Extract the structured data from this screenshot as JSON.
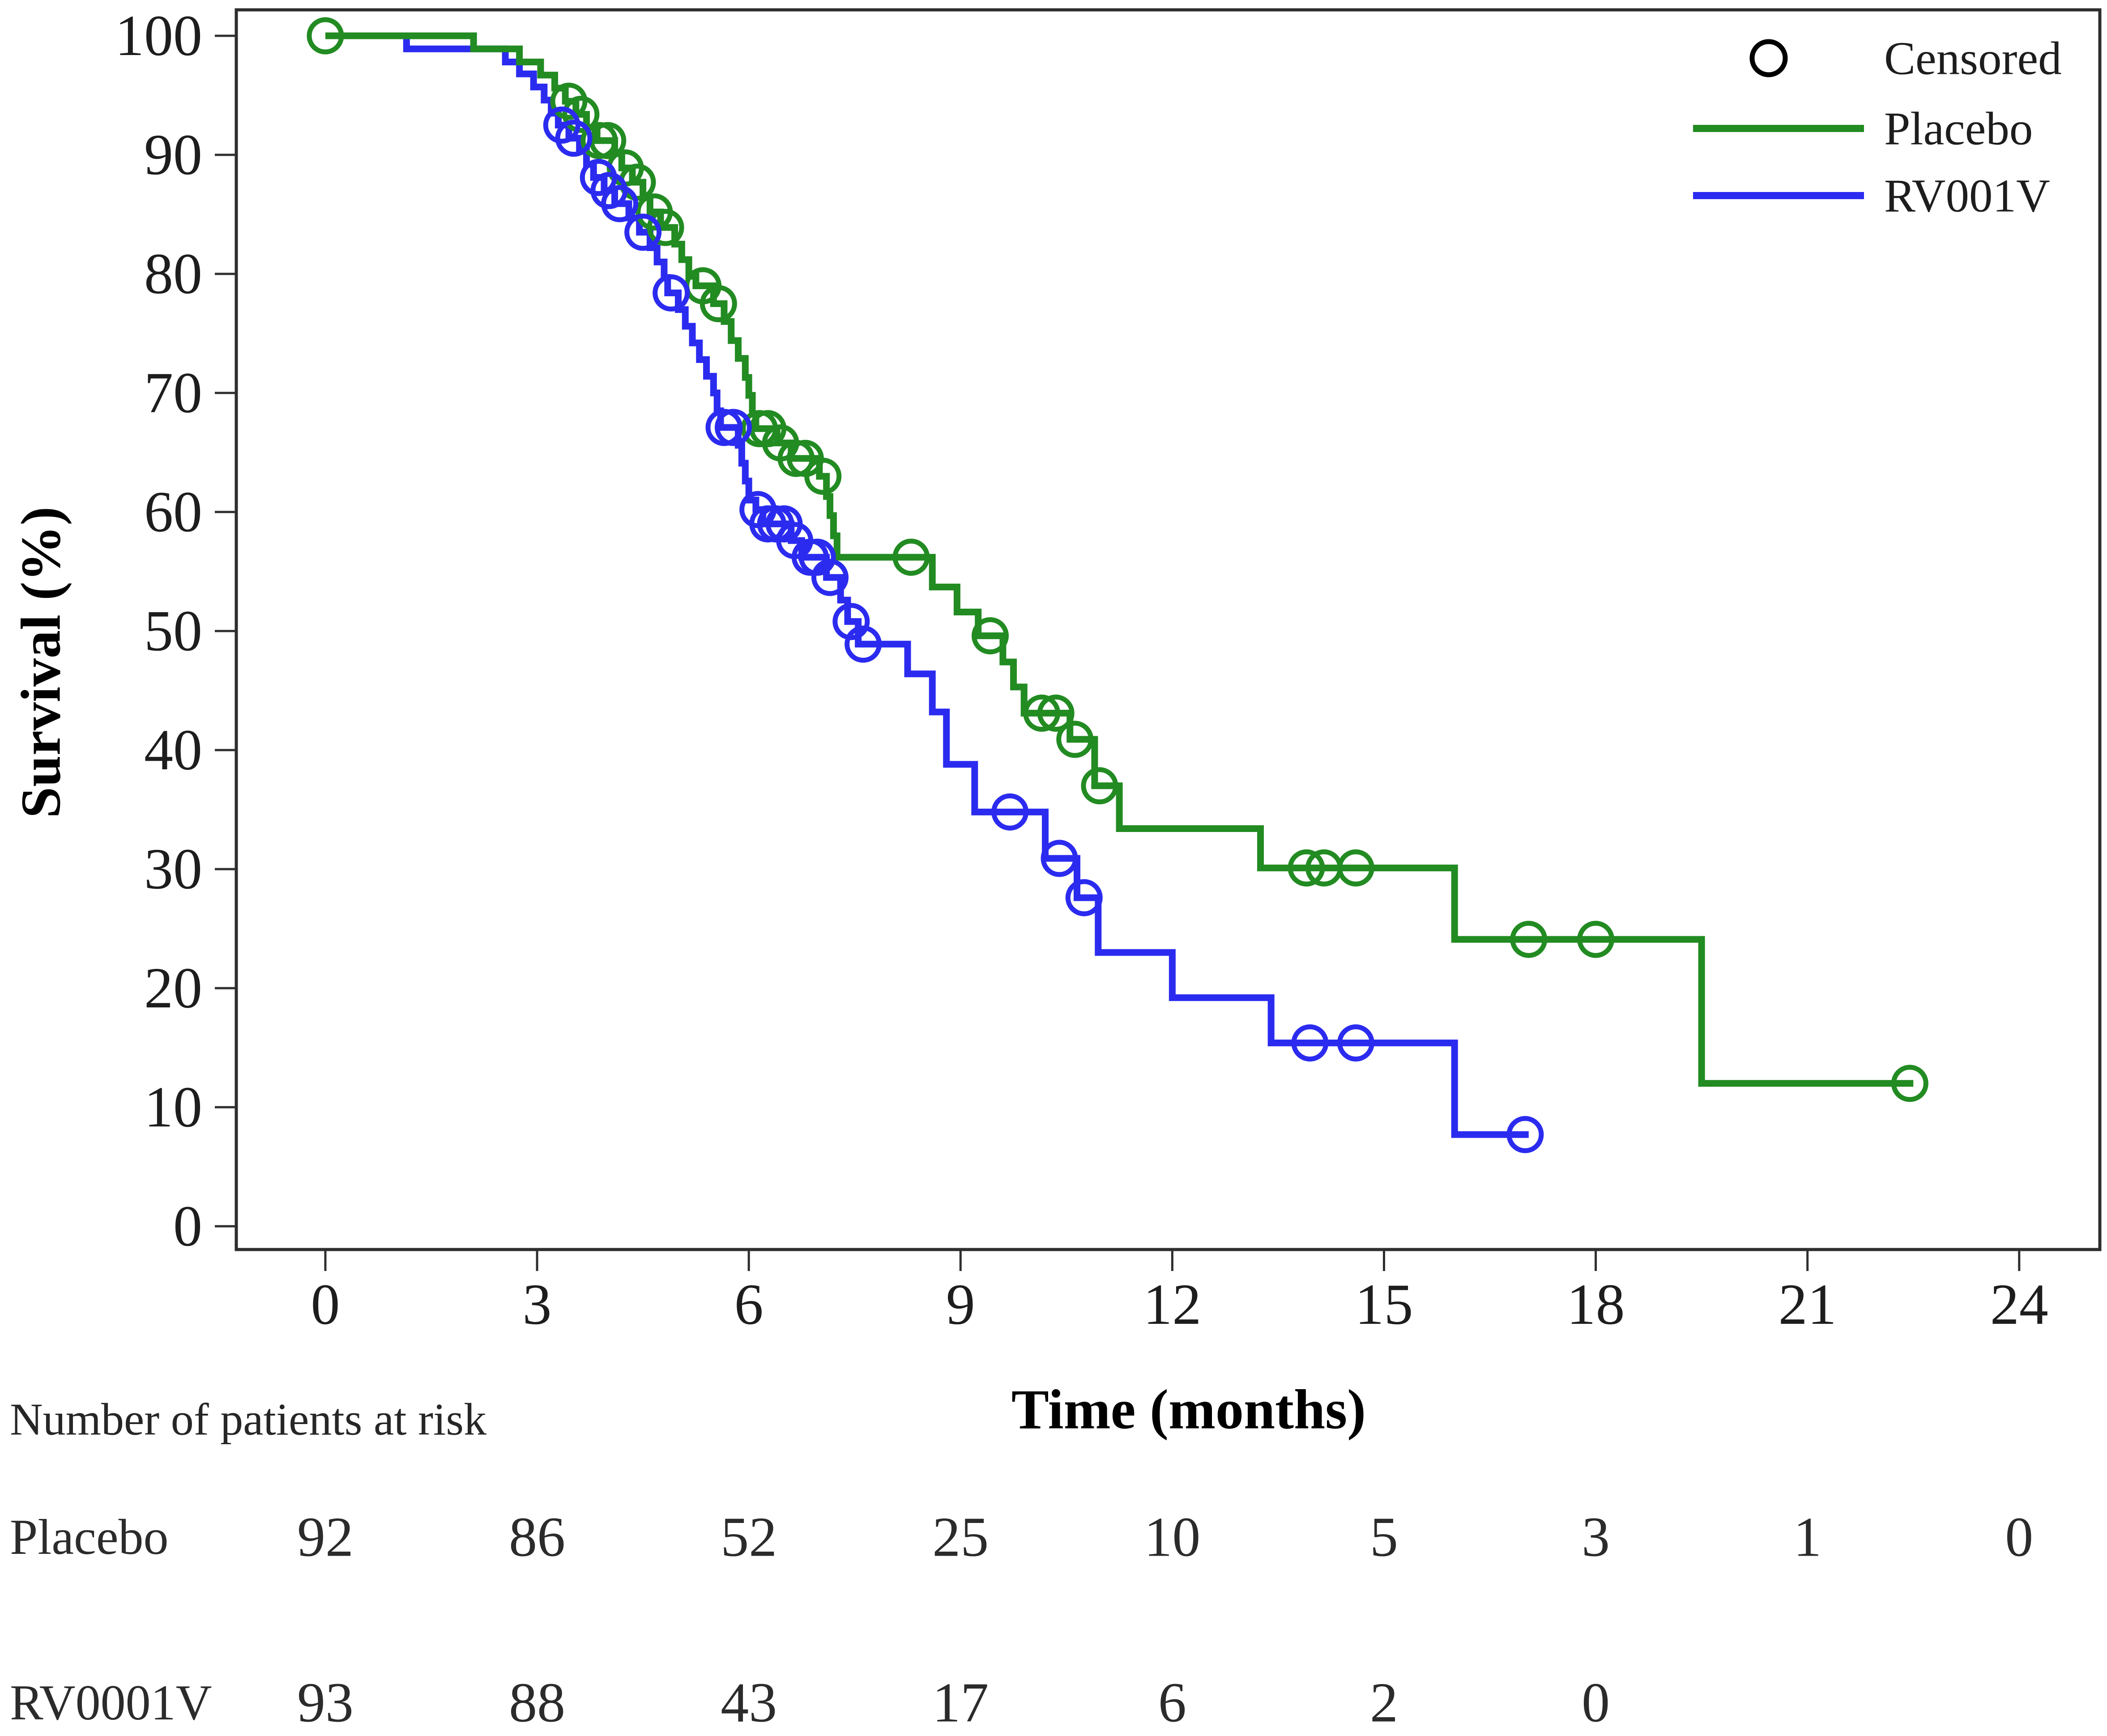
{
  "chart_data": {
    "type": "line",
    "subtype": "kaplan-meier-step",
    "title": "",
    "xlabel": "Time (months)",
    "ylabel": "Survival (%)",
    "xlim": [
      0,
      24
    ],
    "ylim": [
      0,
      100
    ],
    "x_ticks": [
      0,
      3,
      6,
      9,
      12,
      15,
      18,
      21,
      24
    ],
    "y_ticks": [
      0,
      10,
      20,
      30,
      40,
      50,
      60,
      70,
      80,
      90,
      100
    ],
    "grid": "off",
    "colors": {
      "placebo": "#228b22",
      "rv001v": "#2b2bf0",
      "censored_marker": "#000000"
    },
    "legend": {
      "position": "top-right",
      "items": [
        {
          "label": "Censored",
          "marker": "open-circle",
          "color": "#000000"
        },
        {
          "label": "Placebo",
          "marker": "line",
          "color": "#228b22"
        },
        {
          "label": "RV001V",
          "marker": "line",
          "color": "#2b2bf0"
        }
      ]
    },
    "series": [
      {
        "name": "Placebo",
        "color": "#228b22",
        "end_time": 22.5,
        "steps": [
          [
            0,
            100
          ],
          [
            2.1,
            98.9
          ],
          [
            2.75,
            97.8
          ],
          [
            3.05,
            96.7
          ],
          [
            3.25,
            95.6
          ],
          [
            3.4,
            94.5
          ],
          [
            3.55,
            93.4
          ],
          [
            3.7,
            92.3
          ],
          [
            3.85,
            91.2
          ],
          [
            4.1,
            90.1
          ],
          [
            4.2,
            88.9
          ],
          [
            4.35,
            87.7
          ],
          [
            4.5,
            86.4
          ],
          [
            4.6,
            85.2
          ],
          [
            4.75,
            83.9
          ],
          [
            4.95,
            82.5
          ],
          [
            5.05,
            81.2
          ],
          [
            5.15,
            79.8
          ],
          [
            5.25,
            79
          ],
          [
            5.5,
            77.5
          ],
          [
            5.65,
            76
          ],
          [
            5.75,
            74.4
          ],
          [
            5.85,
            72.9
          ],
          [
            5.95,
            71.3
          ],
          [
            6,
            69.8
          ],
          [
            6.05,
            68.2
          ],
          [
            6.1,
            67
          ],
          [
            6.4,
            65.8
          ],
          [
            6.6,
            64.5
          ],
          [
            7,
            63
          ],
          [
            7.1,
            61.3
          ],
          [
            7.15,
            59.7
          ],
          [
            7.2,
            58
          ],
          [
            7.25,
            56.2
          ],
          [
            8.6,
            53.7
          ],
          [
            8.95,
            51.6
          ],
          [
            9.25,
            49.6
          ],
          [
            9.6,
            47.4
          ],
          [
            9.75,
            45.3
          ],
          [
            9.9,
            43.1
          ],
          [
            10.55,
            40.9
          ],
          [
            10.9,
            37
          ],
          [
            11.25,
            33.4
          ],
          [
            13.25,
            30.1
          ],
          [
            16,
            24.1
          ],
          [
            19.5,
            12
          ]
        ],
        "censored": [
          [
            0,
            100
          ],
          [
            3.45,
            94.5
          ],
          [
            3.62,
            93.4
          ],
          [
            3.88,
            91.2
          ],
          [
            4,
            91.2
          ],
          [
            4.25,
            88.9
          ],
          [
            4.42,
            87.7
          ],
          [
            4.66,
            85.2
          ],
          [
            4.82,
            83.9
          ],
          [
            5.35,
            79
          ],
          [
            5.57,
            77.5
          ],
          [
            6.15,
            67
          ],
          [
            6.27,
            67
          ],
          [
            6.45,
            65.8
          ],
          [
            6.67,
            64.5
          ],
          [
            6.8,
            64.5
          ],
          [
            7.05,
            63
          ],
          [
            8.3,
            56.2
          ],
          [
            9.42,
            49.6
          ],
          [
            10.15,
            43.1
          ],
          [
            10.35,
            43.1
          ],
          [
            10.62,
            40.9
          ],
          [
            10.97,
            37
          ],
          [
            13.9,
            30.1
          ],
          [
            14.15,
            30.1
          ],
          [
            14.6,
            30.1
          ],
          [
            17.05,
            24.1
          ],
          [
            18,
            24.1
          ],
          [
            22.45,
            12
          ]
        ]
      },
      {
        "name": "RV001V",
        "color": "#2b2bf0",
        "end_time": 17.05,
        "steps": [
          [
            0,
            100
          ],
          [
            1.15,
            98.9
          ],
          [
            2.55,
            97.8
          ],
          [
            2.75,
            96.8
          ],
          [
            2.95,
            95.7
          ],
          [
            3.1,
            94.6
          ],
          [
            3.2,
            93.5
          ],
          [
            3.3,
            92.5
          ],
          [
            3.45,
            91.4
          ],
          [
            3.6,
            90.3
          ],
          [
            3.7,
            89.2
          ],
          [
            3.8,
            88.1
          ],
          [
            3.95,
            87
          ],
          [
            4.1,
            85.9
          ],
          [
            4.3,
            84.7
          ],
          [
            4.45,
            83.5
          ],
          [
            4.6,
            82.2
          ],
          [
            4.7,
            81
          ],
          [
            4.8,
            79.7
          ],
          [
            4.85,
            78.4
          ],
          [
            5,
            77
          ],
          [
            5.1,
            75.6
          ],
          [
            5.2,
            74.2
          ],
          [
            5.3,
            72.8
          ],
          [
            5.4,
            71.4
          ],
          [
            5.5,
            70
          ],
          [
            5.55,
            68.5
          ],
          [
            5.6,
            67.1
          ],
          [
            5.85,
            65.6
          ],
          [
            5.9,
            64.1
          ],
          [
            5.95,
            62.6
          ],
          [
            6,
            61
          ],
          [
            6.1,
            60.2
          ],
          [
            6.2,
            59
          ],
          [
            6.6,
            57.6
          ],
          [
            6.75,
            56.2
          ],
          [
            7.1,
            54.5
          ],
          [
            7.3,
            52.6
          ],
          [
            7.4,
            50.8
          ],
          [
            7.55,
            48.9
          ],
          [
            8.25,
            46.4
          ],
          [
            8.6,
            43.2
          ],
          [
            8.8,
            38.8
          ],
          [
            9.2,
            34.8
          ],
          [
            10.2,
            30.9
          ],
          [
            10.65,
            27.6
          ],
          [
            10.95,
            23
          ],
          [
            12,
            19.2
          ],
          [
            13.4,
            15.4
          ],
          [
            16,
            7.7
          ]
        ],
        "censored": [
          [
            3.35,
            92.5
          ],
          [
            3.52,
            91.4
          ],
          [
            3.87,
            88.1
          ],
          [
            4.02,
            87
          ],
          [
            4.17,
            85.9
          ],
          [
            4.5,
            83.5
          ],
          [
            4.9,
            78.4
          ],
          [
            5.65,
            67.1
          ],
          [
            5.78,
            67.1
          ],
          [
            6.13,
            60.2
          ],
          [
            6.27,
            59
          ],
          [
            6.38,
            59
          ],
          [
            6.5,
            59
          ],
          [
            6.65,
            57.6
          ],
          [
            6.87,
            56.2
          ],
          [
            6.97,
            56.2
          ],
          [
            7.15,
            54.5
          ],
          [
            7.45,
            50.8
          ],
          [
            7.62,
            48.9
          ],
          [
            9.7,
            34.8
          ],
          [
            10.4,
            30.9
          ],
          [
            10.75,
            27.6
          ],
          [
            13.95,
            15.4
          ],
          [
            14.6,
            15.4
          ],
          [
            17,
            7.7
          ]
        ]
      }
    ],
    "at_risk_table": {
      "title": "Number of patients at risk",
      "time_points": [
        0,
        3,
        6,
        9,
        12,
        15,
        18,
        21,
        24
      ],
      "rows": [
        {
          "label": "Placebo",
          "counts": [
            92,
            86,
            52,
            25,
            10,
            5,
            3,
            1,
            0
          ]
        },
        {
          "label": "RV0001V",
          "counts": [
            93,
            88,
            43,
            17,
            6,
            2,
            0
          ]
        }
      ]
    }
  }
}
